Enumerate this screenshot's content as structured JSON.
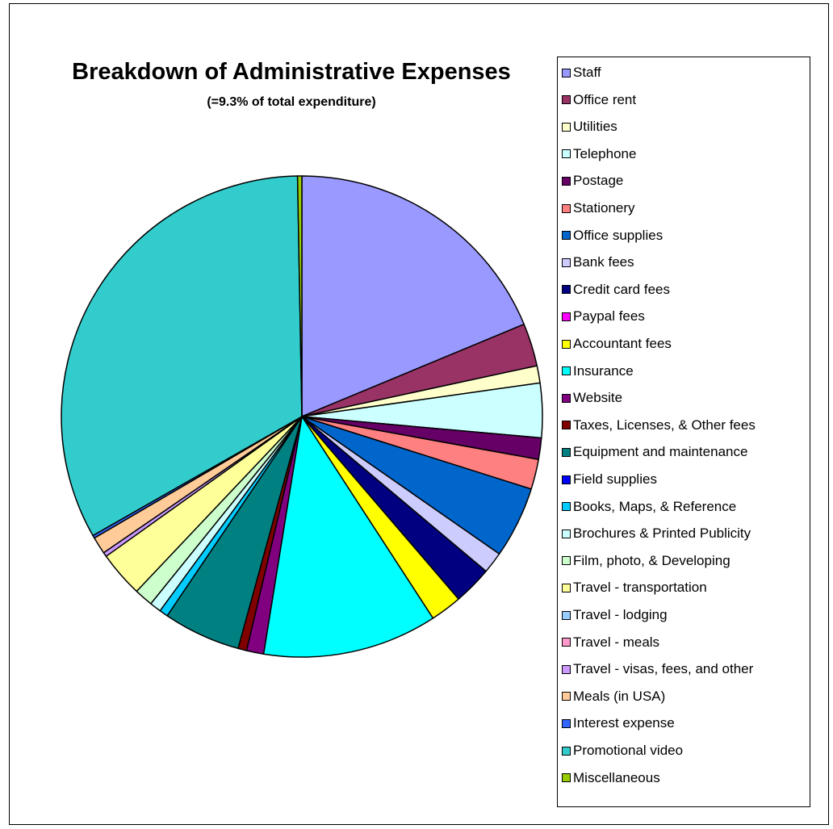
{
  "chart_data": {
    "type": "pie",
    "title": "Breakdown of Administrative Expenses",
    "subtitle": "(=9.3% of total expenditure)",
    "legend_position": "right",
    "categories": [
      "Staff",
      "Office rent",
      "Utilities",
      "Telephone",
      "Postage",
      "Stationery",
      "Office supplies",
      "Bank fees",
      "Credit card fees",
      "Paypal fees",
      "Accountant fees",
      "Insurance",
      "Website",
      "Taxes, Licenses, & Other fees",
      "Equipment and maintenance",
      "Field supplies",
      "Books, Maps, & Reference",
      "Brochures & Printed Publicity",
      "Film, photo, & Developing",
      "Travel - transportation",
      "Travel - lodging",
      "Travel - meals",
      "Travel - visas, fees, and other",
      "Meals (in USA)",
      "Interest expense",
      "Promotional video",
      "Miscellaneous"
    ],
    "values": [
      19.5,
      3.0,
      1.2,
      3.8,
      1.5,
      2.1,
      5.0,
      1.5,
      2.7,
      0.0,
      2.2,
      12.2,
      1.2,
      0.6,
      5.4,
      0.0,
      0.6,
      0.8,
      1.3,
      3.2,
      0.0,
      0.0,
      0.3,
      1.2,
      0.2,
      34.3,
      0.3
    ],
    "colors": [
      "#9999FF",
      "#993366",
      "#FFFFCC",
      "#CCFFFF",
      "#660066",
      "#FF8080",
      "#0066CC",
      "#CCCCFF",
      "#000080",
      "#FF00FF",
      "#FFFF00",
      "#00FFFF",
      "#800080",
      "#800000",
      "#008080",
      "#0000FF",
      "#00CCFF",
      "#CCFFFF",
      "#CCFFCC",
      "#FFFF99",
      "#99CCFF",
      "#FF99CC",
      "#CC99FF",
      "#FFCC99",
      "#3366FF",
      "#33CCCC",
      "#99CC00"
    ]
  }
}
